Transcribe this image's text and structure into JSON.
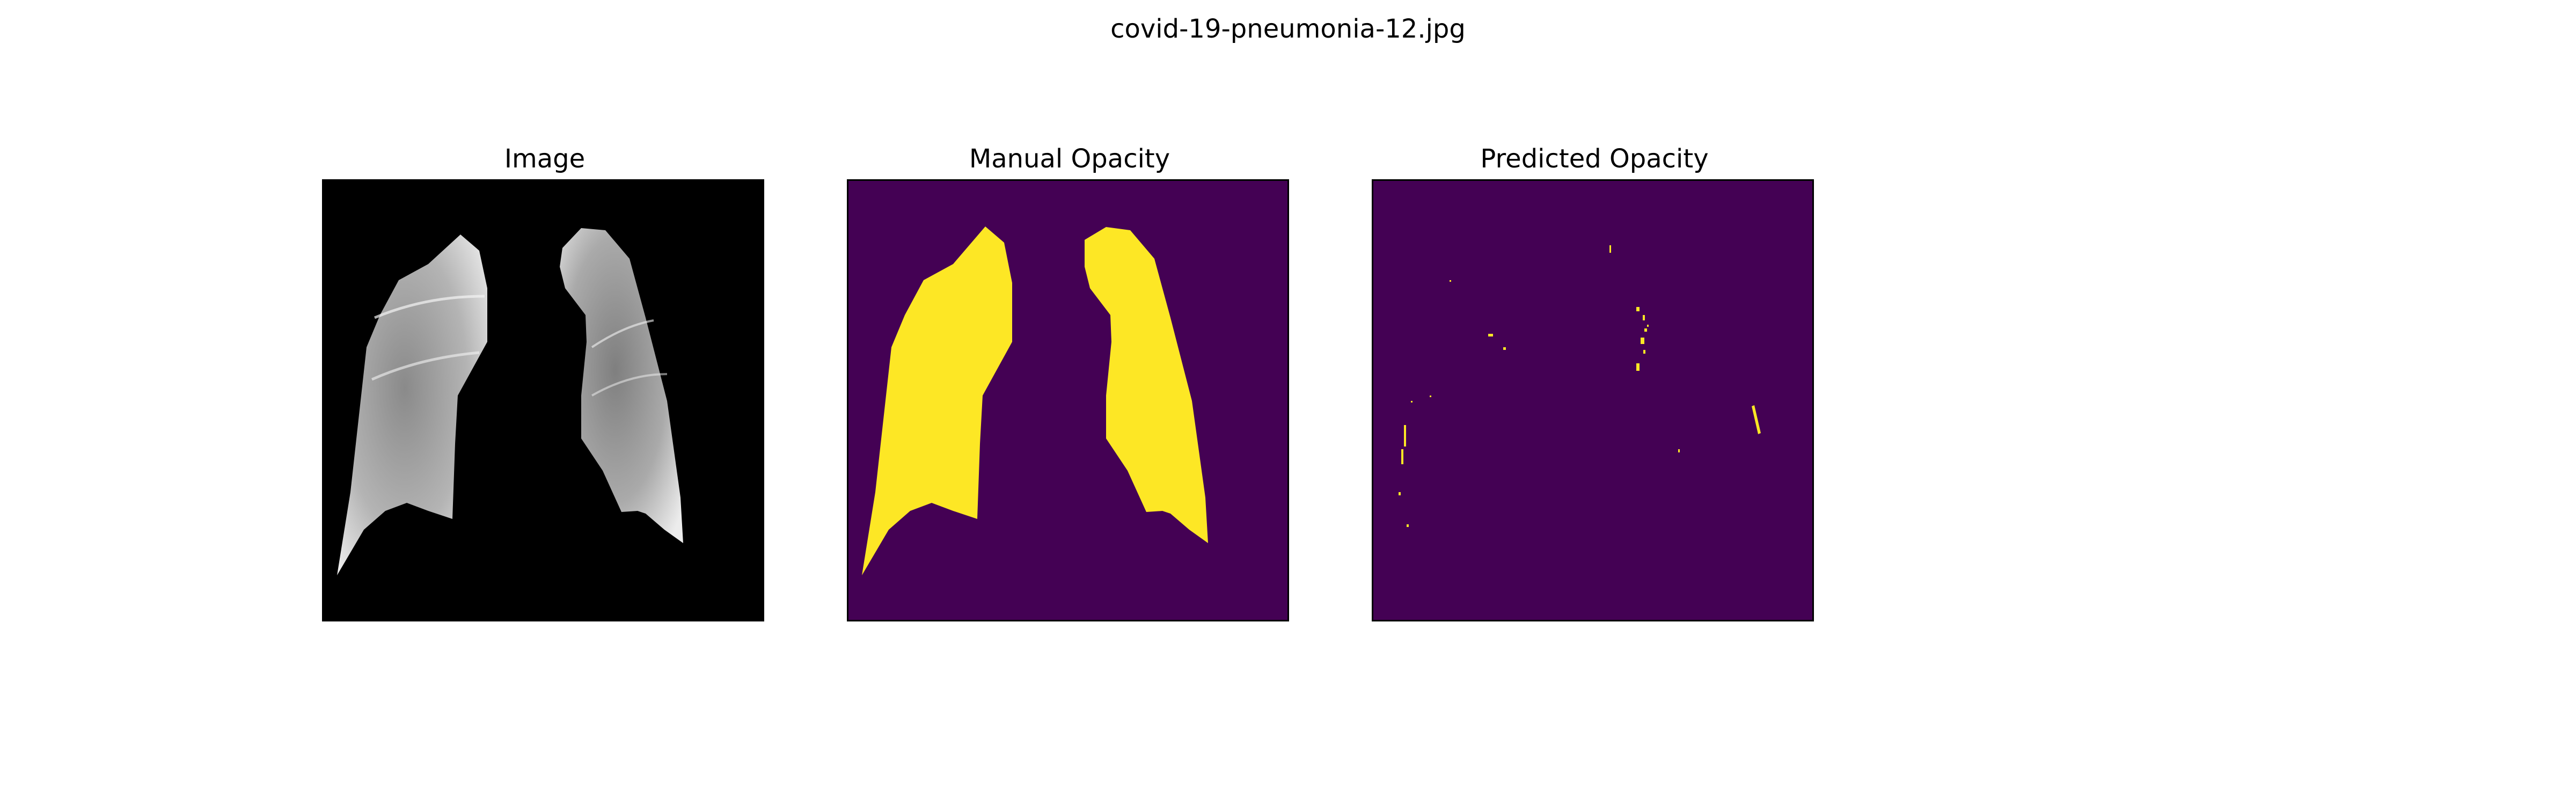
{
  "figure": {
    "title": "covid-19-pneumonia-12.jpg"
  },
  "panels": [
    {
      "title": "Image"
    },
    {
      "title": "Manual Opacity"
    },
    {
      "title": "Predicted Opacity"
    }
  ],
  "colors": {
    "background": "#ffffff",
    "image_background": "#000000",
    "lung_gray": "#bdbdbd",
    "mask_background": "#440154",
    "mask_foreground": "#fde725"
  }
}
